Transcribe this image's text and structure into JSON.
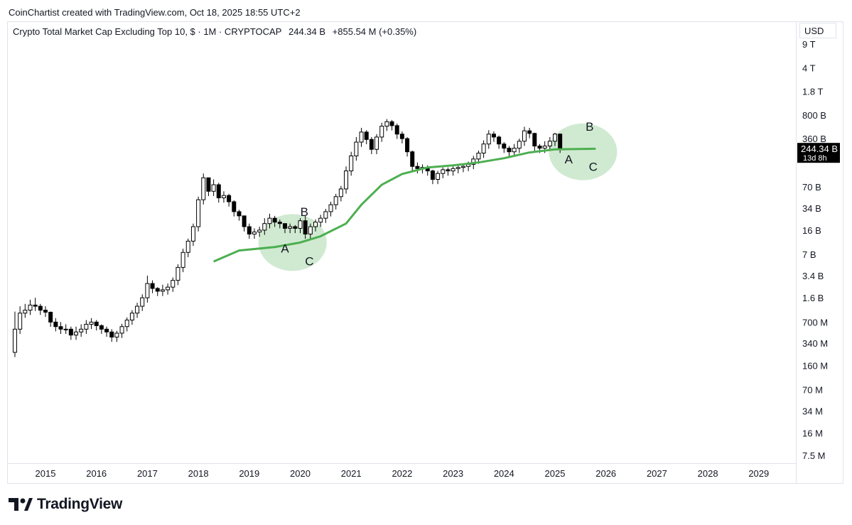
{
  "header": {
    "credit": "CoinChartist created with TradingView.com, Oct 18, 2025 18:55 UTC+2",
    "symbol_title": "Crypto Total Market Cap Excluding Top 10, $ · 1M · CRYPTOCAP",
    "last_price": "244.34 B",
    "change": "+855.54 M (+0.35%)",
    "currency": "USD"
  },
  "price_tag": {
    "value": "244.34 B",
    "countdown": "13d 8h"
  },
  "brand": {
    "name": "TradingView"
  },
  "colors": {
    "ma_line": "#4caf50",
    "highlight": "#c8e6c9",
    "candle_up": "#ffffff",
    "candle_down": "#000000",
    "price_tag_bg": "#000000"
  },
  "chart_data": {
    "type": "candlestick",
    "title": "Crypto Total Market Cap Excluding Top 10, $ · 1M · CRYPTOCAP",
    "y_scale": "log",
    "y_ticks": [
      "9 T",
      "4 T",
      "1.8 T",
      "800 B",
      "360 B",
      "70 B",
      "34 B",
      "16 B",
      "7 B",
      "3.4 B",
      "1.6 B",
      "700 M",
      "340 M",
      "160 M",
      "70 M",
      "34 M",
      "16 M",
      "7.5 M"
    ],
    "x_ticks": [
      "2015",
      "2016",
      "2017",
      "2018",
      "2019",
      "2020",
      "2021",
      "2022",
      "2023",
      "2024",
      "2025",
      "2026",
      "2027",
      "2028",
      "2029"
    ],
    "moving_average": [
      {
        "x": 2018.3,
        "y": 5500000000.0
      },
      {
        "x": 2018.8,
        "y": 8000000000.0
      },
      {
        "x": 2019.5,
        "y": 9000000000.0
      },
      {
        "x": 2020.0,
        "y": 10500000000.0
      },
      {
        "x": 2020.4,
        "y": 13000000000.0
      },
      {
        "x": 2020.9,
        "y": 20000000000.0
      },
      {
        "x": 2021.2,
        "y": 38000000000.0
      },
      {
        "x": 2021.6,
        "y": 75000000000.0
      },
      {
        "x": 2022.0,
        "y": 108000000000.0
      },
      {
        "x": 2022.5,
        "y": 135000000000.0
      },
      {
        "x": 2023.0,
        "y": 145000000000.0
      },
      {
        "x": 2023.5,
        "y": 160000000000.0
      },
      {
        "x": 2024.0,
        "y": 185000000000.0
      },
      {
        "x": 2024.5,
        "y": 225000000000.0
      },
      {
        "x": 2025.0,
        "y": 250000000000.0
      },
      {
        "x": 2025.8,
        "y": 255000000000.0
      }
    ],
    "annotations": [
      {
        "text": "A",
        "x": 2019.7,
        "y": 7500000000.0
      },
      {
        "text": "B",
        "x": 2020.08,
        "y": 26000000000.0
      },
      {
        "text": "C",
        "x": 2020.18,
        "y": 4800000000.0
      },
      {
        "text": "A",
        "x": 2025.27,
        "y": 155000000000.0
      },
      {
        "text": "B",
        "x": 2025.68,
        "y": 470000000000.0
      },
      {
        "text": "C",
        "x": 2025.75,
        "y": 120000000000.0
      }
    ],
    "highlights": [
      {
        "x_center": 2019.85,
        "y_center": 10500000000.0
      },
      {
        "x_center": 2025.55,
        "y_center": 230000000000.0
      }
    ],
    "candles": [
      [
        2014.4,
        0.55,
        0.25,
        1.0
      ],
      [
        2014.5,
        0.95,
        0.55,
        1.2
      ],
      [
        2014.6,
        1.05,
        0.95,
        1.3
      ],
      [
        2014.7,
        1.25,
        1.05,
        1.5
      ],
      [
        2014.8,
        1.2,
        1.25,
        1.6
      ],
      [
        2014.9,
        1.05,
        1.2,
        1.3
      ],
      [
        2015.0,
        0.98,
        1.05,
        1.2
      ],
      [
        2015.1,
        0.7,
        0.98,
        1.0
      ],
      [
        2015.2,
        0.6,
        0.7,
        0.8
      ],
      [
        2015.3,
        0.55,
        0.6,
        0.7
      ],
      [
        2015.4,
        0.55,
        0.55,
        0.65
      ],
      [
        2015.5,
        0.45,
        0.55,
        0.6
      ],
      [
        2015.6,
        0.5,
        0.45,
        0.6
      ],
      [
        2015.7,
        0.55,
        0.5,
        0.65
      ],
      [
        2015.8,
        0.65,
        0.55,
        0.75
      ],
      [
        2015.9,
        0.7,
        0.65,
        0.8
      ],
      [
        2016.0,
        0.62,
        0.7,
        0.75
      ],
      [
        2016.1,
        0.55,
        0.62,
        0.65
      ],
      [
        2016.2,
        0.5,
        0.55,
        0.6
      ],
      [
        2016.3,
        0.42,
        0.5,
        0.55
      ],
      [
        2016.4,
        0.48,
        0.42,
        0.52
      ],
      [
        2016.5,
        0.6,
        0.48,
        0.66
      ],
      [
        2016.6,
        0.75,
        0.6,
        0.82
      ],
      [
        2016.7,
        0.95,
        0.75,
        1.05
      ],
      [
        2016.8,
        1.2,
        0.95,
        1.35
      ],
      [
        2016.9,
        1.6,
        1.2,
        1.8
      ],
      [
        2017.0,
        2.6,
        1.6,
        3.4
      ],
      [
        2017.1,
        2.2,
        2.6,
        2.9
      ],
      [
        2017.2,
        2.0,
        2.2,
        2.3
      ],
      [
        2017.3,
        2.1,
        2.0,
        2.5
      ],
      [
        2017.4,
        2.3,
        2.1,
        2.6
      ],
      [
        2017.5,
        2.9,
        2.3,
        3.2
      ],
      [
        2017.6,
        4.5,
        2.9,
        5.0
      ],
      [
        2017.7,
        7.5,
        4.5,
        8.5
      ],
      [
        2017.8,
        11,
        7.5,
        12
      ],
      [
        2017.9,
        18,
        11,
        20
      ],
      [
        2018.0,
        45,
        18,
        50
      ],
      [
        2018.1,
        95,
        45,
        110
      ],
      [
        2018.2,
        60,
        95,
        85
      ],
      [
        2018.3,
        75,
        60,
        90
      ],
      [
        2018.4,
        48,
        75,
        80
      ],
      [
        2018.5,
        52,
        48,
        60
      ],
      [
        2018.6,
        42,
        52,
        55
      ],
      [
        2018.7,
        30,
        42,
        44
      ],
      [
        2018.8,
        26,
        30,
        32
      ],
      [
        2018.9,
        18,
        26,
        24
      ],
      [
        2019.0,
        14,
        18,
        20
      ],
      [
        2019.1,
        15,
        14,
        17
      ],
      [
        2019.2,
        16,
        15,
        18
      ],
      [
        2019.3,
        20,
        16,
        24
      ],
      [
        2019.4,
        24,
        20,
        28
      ],
      [
        2019.5,
        21,
        24,
        26
      ],
      [
        2019.6,
        20,
        21,
        23
      ],
      [
        2019.7,
        17,
        20,
        20
      ],
      [
        2019.8,
        18,
        17,
        20
      ],
      [
        2019.9,
        17,
        18,
        19
      ],
      [
        2020.0,
        22,
        17,
        24
      ],
      [
        2020.1,
        14,
        22,
        26
      ],
      [
        2020.2,
        18,
        14,
        20
      ],
      [
        2020.3,
        21,
        18,
        23
      ],
      [
        2020.4,
        24,
        21,
        27
      ],
      [
        2020.5,
        30,
        24,
        33
      ],
      [
        2020.6,
        38,
        30,
        42
      ],
      [
        2020.7,
        50,
        38,
        55
      ],
      [
        2020.8,
        65,
        50,
        72
      ],
      [
        2020.9,
        120,
        65,
        140
      ],
      [
        2021.0,
        200,
        120,
        230
      ],
      [
        2021.1,
        320,
        200,
        380
      ],
      [
        2021.2,
        450,
        320,
        520
      ],
      [
        2021.3,
        350,
        450,
        480
      ],
      [
        2021.4,
        250,
        350,
        380
      ],
      [
        2021.5,
        380,
        250,
        420
      ],
      [
        2021.6,
        550,
        380,
        620
      ],
      [
        2021.7,
        640,
        550,
        700
      ],
      [
        2021.8,
        560,
        640,
        680
      ],
      [
        2021.9,
        420,
        560,
        600
      ],
      [
        2022.0,
        360,
        420,
        460
      ],
      [
        2022.1,
        230,
        360,
        380
      ],
      [
        2022.2,
        140,
        230,
        240
      ],
      [
        2022.3,
        130,
        140,
        160
      ],
      [
        2022.4,
        135,
        130,
        150
      ],
      [
        2022.5,
        120,
        135,
        145
      ],
      [
        2022.6,
        90,
        120,
        125
      ],
      [
        2022.7,
        110,
        90,
        120
      ],
      [
        2022.8,
        125,
        110,
        135
      ],
      [
        2022.9,
        120,
        125,
        135
      ],
      [
        2023.0,
        130,
        120,
        140
      ],
      [
        2023.1,
        135,
        130,
        150
      ],
      [
        2023.2,
        140,
        135,
        155
      ],
      [
        2023.3,
        150,
        140,
        165
      ],
      [
        2023.4,
        180,
        150,
        200
      ],
      [
        2023.5,
        220,
        180,
        240
      ],
      [
        2023.6,
        300,
        220,
        340
      ],
      [
        2023.7,
        420,
        300,
        480
      ],
      [
        2023.8,
        380,
        420,
        460
      ],
      [
        2023.9,
        300,
        380,
        400
      ],
      [
        2024.0,
        260,
        300,
        320
      ],
      [
        2024.1,
        230,
        260,
        280
      ],
      [
        2024.2,
        260,
        230,
        300
      ],
      [
        2024.3,
        330,
        260,
        360
      ],
      [
        2024.4,
        470,
        330,
        540
      ],
      [
        2024.5,
        430,
        470,
        520
      ],
      [
        2024.6,
        280,
        430,
        440
      ],
      [
        2024.7,
        260,
        280,
        300
      ],
      [
        2024.8,
        280,
        260,
        330
      ],
      [
        2024.9,
        330,
        280,
        380
      ],
      [
        2025.0,
        420,
        330,
        440
      ],
      [
        2025.1,
        260,
        420,
        430
      ]
    ]
  }
}
